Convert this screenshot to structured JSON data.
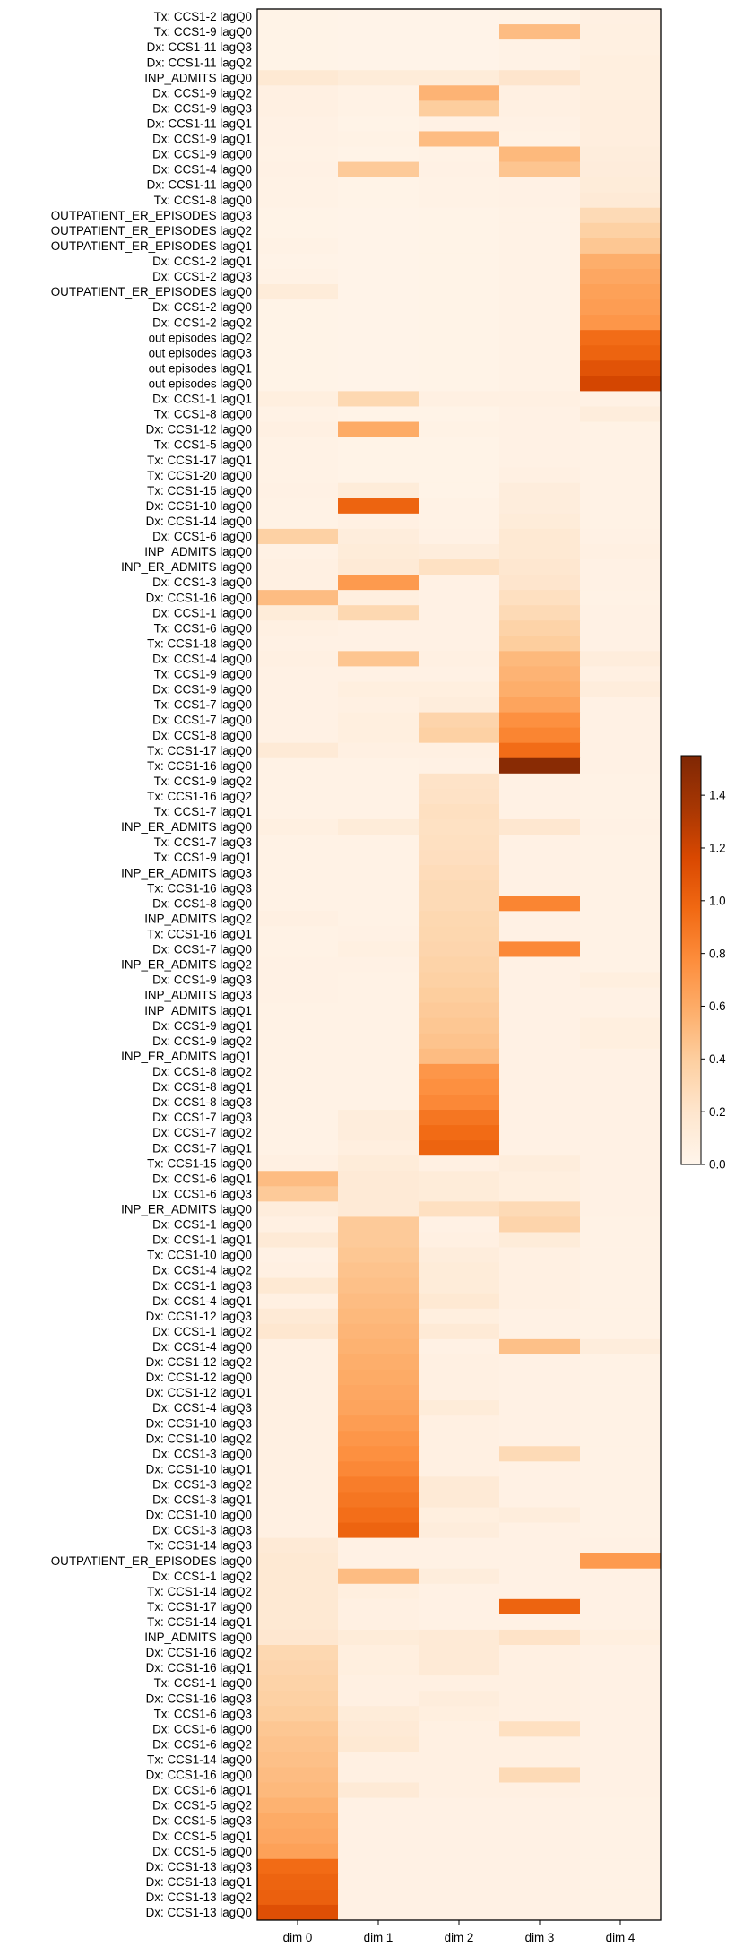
{
  "chart_data": {
    "type": "heatmap",
    "title": "",
    "xlabel": "",
    "ylabel": "",
    "columns": [
      "dim 0",
      "dim 1",
      "dim 2",
      "dim 3",
      "dim 4"
    ],
    "colorbar": {
      "min": 0.0,
      "max": 1.55,
      "ticks": [
        "0.0",
        "0.2",
        "0.4",
        "0.6",
        "0.8",
        "1.0",
        "1.2",
        "1.4"
      ],
      "tick_values": [
        0.0,
        0.2,
        0.4,
        0.6,
        0.8,
        1.0,
        1.2,
        1.4
      ],
      "colormap": "Oranges",
      "stops": [
        "#fff5eb",
        "#fee6ce",
        "#fdd0a2",
        "#fdae6b",
        "#fd8d3c",
        "#f16913",
        "#d94801",
        "#a63603",
        "#7f2704"
      ]
    },
    "rows": [
      "Tx: CCS1-2 lagQ0",
      "Tx: CCS1-9 lagQ0",
      "Dx: CCS1-11 lagQ3",
      "Dx: CCS1-11 lagQ2",
      "INP_ADMITS lagQ0",
      "Dx: CCS1-9 lagQ2",
      "Dx: CCS1-9 lagQ3",
      "Dx: CCS1-11 lagQ1",
      "Dx: CCS1-9 lagQ1",
      "Dx: CCS1-9 lagQ0",
      "Dx: CCS1-4 lagQ0",
      "Dx: CCS1-11 lagQ0",
      "Tx: CCS1-8 lagQ0",
      "OUTPATIENT_ER_EPISODES lagQ3",
      "OUTPATIENT_ER_EPISODES lagQ2",
      "OUTPATIENT_ER_EPISODES lagQ1",
      "Dx: CCS1-2 lagQ1",
      "Dx: CCS1-2 lagQ3",
      "OUTPATIENT_ER_EPISODES lagQ0",
      "Dx: CCS1-2 lagQ0",
      "Dx: CCS1-2 lagQ2",
      "out episodes lagQ2",
      "out episodes lagQ3",
      "out episodes lagQ1",
      "out episodes lagQ0",
      "Dx: CCS1-1 lagQ1",
      "Tx: CCS1-8 lagQ0",
      "Dx: CCS1-12 lagQ0",
      "Tx: CCS1-5 lagQ0",
      "Tx: CCS1-17 lagQ1",
      "Tx: CCS1-20 lagQ0",
      "Tx: CCS1-15 lagQ0",
      "Dx: CCS1-10 lagQ0",
      "Dx: CCS1-14 lagQ0",
      "Dx: CCS1-6 lagQ0",
      "INP_ADMITS lagQ0",
      "INP_ER_ADMITS lagQ0",
      "Dx: CCS1-3 lagQ0",
      "Dx: CCS1-16 lagQ0",
      "Dx: CCS1-1 lagQ0",
      "Tx: CCS1-6 lagQ0",
      "Tx: CCS1-18 lagQ0",
      "Dx: CCS1-4 lagQ0",
      "Tx: CCS1-9 lagQ0",
      "Dx: CCS1-9 lagQ0",
      "Tx: CCS1-7 lagQ0",
      "Dx: CCS1-7 lagQ0",
      "Dx: CCS1-8 lagQ0",
      "Tx: CCS1-17 lagQ0",
      "Tx: CCS1-16 lagQ0",
      "Tx: CCS1-9 lagQ2",
      "Tx: CCS1-16 lagQ2",
      "Tx: CCS1-7 lagQ1",
      "INP_ER_ADMITS lagQ0",
      "Tx: CCS1-7 lagQ3",
      "Tx: CCS1-9 lagQ1",
      "INP_ER_ADMITS lagQ3",
      "Tx: CCS1-16 lagQ3",
      "Dx: CCS1-8 lagQ0",
      "INP_ADMITS lagQ2",
      "Tx: CCS1-16 lagQ1",
      "Dx: CCS1-7 lagQ0",
      "INP_ER_ADMITS lagQ2",
      "Dx: CCS1-9 lagQ3",
      "INP_ADMITS lagQ3",
      "INP_ADMITS lagQ1",
      "Dx: CCS1-9 lagQ1",
      "Dx: CCS1-9 lagQ2",
      "INP_ER_ADMITS lagQ1",
      "Dx: CCS1-8 lagQ2",
      "Dx: CCS1-8 lagQ1",
      "Dx: CCS1-8 lagQ3",
      "Dx: CCS1-7 lagQ3",
      "Dx: CCS1-7 lagQ2",
      "Dx: CCS1-7 lagQ1",
      "Tx: CCS1-15 lagQ0",
      "Dx: CCS1-6 lagQ1",
      "Dx: CCS1-6 lagQ3",
      "INP_ER_ADMITS lagQ0",
      "Dx: CCS1-1 lagQ0",
      "Dx: CCS1-1 lagQ1",
      "Tx: CCS1-10 lagQ0",
      "Dx: CCS1-4 lagQ2",
      "Dx: CCS1-1 lagQ3",
      "Dx: CCS1-4 lagQ1",
      "Dx: CCS1-12 lagQ3",
      "Dx: CCS1-1 lagQ2",
      "Dx: CCS1-4 lagQ0",
      "Dx: CCS1-12 lagQ2",
      "Dx: CCS1-12 lagQ0",
      "Dx: CCS1-12 lagQ1",
      "Dx: CCS1-4 lagQ3",
      "Dx: CCS1-10 lagQ3",
      "Dx: CCS1-10 lagQ2",
      "Dx: CCS1-3 lagQ0",
      "Dx: CCS1-10 lagQ1",
      "Dx: CCS1-3 lagQ2",
      "Dx: CCS1-3 lagQ1",
      "Dx: CCS1-10 lagQ0",
      "Dx: CCS1-3 lagQ3",
      "Tx: CCS1-14 lagQ3",
      "OUTPATIENT_ER_EPISODES lagQ0",
      "Dx: CCS1-1 lagQ2",
      "Tx: CCS1-14 lagQ2",
      "Tx: CCS1-17 lagQ0",
      "Tx: CCS1-14 lagQ1",
      "INP_ADMITS lagQ0",
      "Dx: CCS1-16 lagQ2",
      "Dx: CCS1-16 lagQ1",
      "Tx: CCS1-1 lagQ0",
      "Dx: CCS1-16 lagQ3",
      "Tx: CCS1-6 lagQ3",
      "Dx: CCS1-6 lagQ0",
      "Dx: CCS1-6 lagQ2",
      "Tx: CCS1-14 lagQ0",
      "Dx: CCS1-16 lagQ0",
      "Dx: CCS1-6 lagQ1",
      "Dx: CCS1-5 lagQ2",
      "Dx: CCS1-5 lagQ3",
      "Dx: CCS1-5 lagQ1",
      "Dx: CCS1-5 lagQ0",
      "Dx: CCS1-13 lagQ3",
      "Dx: CCS1-13 lagQ1",
      "Dx: CCS1-13 lagQ2",
      "Dx: CCS1-13 lagQ0"
    ],
    "values": [
      [
        0.03,
        0.02,
        0.02,
        0.03,
        0.06
      ],
      [
        0.03,
        0.02,
        0.02,
        0.5,
        0.07
      ],
      [
        0.03,
        0.02,
        0.02,
        0.04,
        0.07
      ],
      [
        0.03,
        0.02,
        0.02,
        0.04,
        0.08
      ],
      [
        0.16,
        0.12,
        0.12,
        0.2,
        0.08
      ],
      [
        0.06,
        0.04,
        0.55,
        0.06,
        0.08
      ],
      [
        0.06,
        0.04,
        0.4,
        0.06,
        0.09
      ],
      [
        0.05,
        0.03,
        0.05,
        0.05,
        0.09
      ],
      [
        0.05,
        0.04,
        0.5,
        0.04,
        0.09
      ],
      [
        0.04,
        0.03,
        0.04,
        0.52,
        0.1
      ],
      [
        0.05,
        0.42,
        0.05,
        0.45,
        0.11
      ],
      [
        0.04,
        0.03,
        0.04,
        0.05,
        0.12
      ],
      [
        0.04,
        0.03,
        0.04,
        0.05,
        0.14
      ],
      [
        0.03,
        0.02,
        0.03,
        0.04,
        0.3
      ],
      [
        0.03,
        0.02,
        0.03,
        0.04,
        0.38
      ],
      [
        0.04,
        0.02,
        0.03,
        0.04,
        0.44
      ],
      [
        0.03,
        0.02,
        0.03,
        0.04,
        0.58
      ],
      [
        0.04,
        0.02,
        0.03,
        0.04,
        0.62
      ],
      [
        0.12,
        0.02,
        0.03,
        0.04,
        0.66
      ],
      [
        0.03,
        0.02,
        0.03,
        0.04,
        0.68
      ],
      [
        0.03,
        0.02,
        0.03,
        0.04,
        0.72
      ],
      [
        0.03,
        0.02,
        0.03,
        0.04,
        0.95
      ],
      [
        0.03,
        0.02,
        0.03,
        0.04,
        1.0
      ],
      [
        0.03,
        0.02,
        0.03,
        0.04,
        1.1
      ],
      [
        0.03,
        0.02,
        0.03,
        0.04,
        1.18
      ],
      [
        0.08,
        0.32,
        0.06,
        0.06,
        0.05
      ],
      [
        0.04,
        0.03,
        0.03,
        0.05,
        0.1
      ],
      [
        0.06,
        0.6,
        0.04,
        0.05,
        0.04
      ],
      [
        0.04,
        0.03,
        0.03,
        0.05,
        0.04
      ],
      [
        0.04,
        0.03,
        0.03,
        0.05,
        0.04
      ],
      [
        0.04,
        0.03,
        0.03,
        0.06,
        0.04
      ],
      [
        0.05,
        0.12,
        0.03,
        0.1,
        0.04
      ],
      [
        0.04,
        1.0,
        0.04,
        0.1,
        0.04
      ],
      [
        0.04,
        0.06,
        0.04,
        0.12,
        0.04
      ],
      [
        0.38,
        0.1,
        0.05,
        0.16,
        0.05
      ],
      [
        0.05,
        0.12,
        0.1,
        0.16,
        0.06
      ],
      [
        0.06,
        0.14,
        0.24,
        0.18,
        0.05
      ],
      [
        0.06,
        0.7,
        0.05,
        0.2,
        0.05
      ],
      [
        0.5,
        0.08,
        0.05,
        0.25,
        0.04
      ],
      [
        0.12,
        0.32,
        0.05,
        0.3,
        0.05
      ],
      [
        0.06,
        0.05,
        0.05,
        0.36,
        0.05
      ],
      [
        0.05,
        0.05,
        0.05,
        0.4,
        0.05
      ],
      [
        0.06,
        0.45,
        0.06,
        0.52,
        0.1
      ],
      [
        0.05,
        0.05,
        0.05,
        0.55,
        0.06
      ],
      [
        0.05,
        0.08,
        0.08,
        0.58,
        0.1
      ],
      [
        0.05,
        0.06,
        0.1,
        0.64,
        0.05
      ],
      [
        0.05,
        0.08,
        0.35,
        0.76,
        0.05
      ],
      [
        0.05,
        0.08,
        0.38,
        0.82,
        0.05
      ],
      [
        0.14,
        0.06,
        0.06,
        0.95,
        0.05
      ],
      [
        0.04,
        0.04,
        0.05,
        1.5,
        0.05
      ],
      [
        0.04,
        0.04,
        0.22,
        0.05,
        0.04
      ],
      [
        0.04,
        0.04,
        0.23,
        0.05,
        0.04
      ],
      [
        0.04,
        0.04,
        0.25,
        0.05,
        0.04
      ],
      [
        0.07,
        0.12,
        0.24,
        0.18,
        0.05
      ],
      [
        0.04,
        0.04,
        0.25,
        0.05,
        0.04
      ],
      [
        0.04,
        0.04,
        0.26,
        0.05,
        0.04
      ],
      [
        0.04,
        0.04,
        0.28,
        0.05,
        0.04
      ],
      [
        0.04,
        0.04,
        0.3,
        0.05,
        0.04
      ],
      [
        0.04,
        0.04,
        0.3,
        0.82,
        0.04
      ],
      [
        0.06,
        0.04,
        0.32,
        0.05,
        0.04
      ],
      [
        0.04,
        0.05,
        0.33,
        0.05,
        0.04
      ],
      [
        0.04,
        0.07,
        0.34,
        0.8,
        0.04
      ],
      [
        0.05,
        0.05,
        0.36,
        0.05,
        0.04
      ],
      [
        0.05,
        0.04,
        0.38,
        0.05,
        0.08
      ],
      [
        0.05,
        0.04,
        0.4,
        0.05,
        0.05
      ],
      [
        0.04,
        0.04,
        0.42,
        0.05,
        0.05
      ],
      [
        0.04,
        0.04,
        0.44,
        0.05,
        0.08
      ],
      [
        0.04,
        0.04,
        0.46,
        0.05,
        0.08
      ],
      [
        0.04,
        0.04,
        0.5,
        0.05,
        0.05
      ],
      [
        0.04,
        0.04,
        0.72,
        0.05,
        0.05
      ],
      [
        0.04,
        0.04,
        0.76,
        0.05,
        0.05
      ],
      [
        0.04,
        0.04,
        0.8,
        0.05,
        0.05
      ],
      [
        0.04,
        0.1,
        0.9,
        0.05,
        0.05
      ],
      [
        0.04,
        0.1,
        0.96,
        0.05,
        0.05
      ],
      [
        0.04,
        0.08,
        1.0,
        0.05,
        0.05
      ],
      [
        0.06,
        0.12,
        0.06,
        0.1,
        0.05
      ],
      [
        0.5,
        0.14,
        0.12,
        0.08,
        0.05
      ],
      [
        0.42,
        0.14,
        0.12,
        0.08,
        0.05
      ],
      [
        0.1,
        0.14,
        0.25,
        0.3,
        0.05
      ],
      [
        0.06,
        0.42,
        0.05,
        0.35,
        0.04
      ],
      [
        0.14,
        0.42,
        0.06,
        0.12,
        0.04
      ],
      [
        0.05,
        0.44,
        0.1,
        0.06,
        0.04
      ],
      [
        0.06,
        0.46,
        0.12,
        0.06,
        0.04
      ],
      [
        0.16,
        0.48,
        0.12,
        0.06,
        0.04
      ],
      [
        0.06,
        0.5,
        0.16,
        0.06,
        0.04
      ],
      [
        0.14,
        0.52,
        0.08,
        0.05,
        0.04
      ],
      [
        0.18,
        0.54,
        0.14,
        0.05,
        0.04
      ],
      [
        0.06,
        0.56,
        0.05,
        0.48,
        0.1
      ],
      [
        0.06,
        0.58,
        0.06,
        0.05,
        0.04
      ],
      [
        0.06,
        0.6,
        0.06,
        0.05,
        0.04
      ],
      [
        0.06,
        0.62,
        0.06,
        0.05,
        0.04
      ],
      [
        0.06,
        0.64,
        0.12,
        0.05,
        0.04
      ],
      [
        0.06,
        0.68,
        0.06,
        0.05,
        0.04
      ],
      [
        0.06,
        0.72,
        0.06,
        0.05,
        0.04
      ],
      [
        0.06,
        0.76,
        0.06,
        0.3,
        0.04
      ],
      [
        0.06,
        0.8,
        0.06,
        0.05,
        0.04
      ],
      [
        0.06,
        0.86,
        0.14,
        0.05,
        0.04
      ],
      [
        0.06,
        0.9,
        0.14,
        0.05,
        0.04
      ],
      [
        0.06,
        0.94,
        0.08,
        0.1,
        0.04
      ],
      [
        0.06,
        1.0,
        0.1,
        0.05,
        0.04
      ],
      [
        0.14,
        0.05,
        0.05,
        0.05,
        0.05
      ],
      [
        0.16,
        0.05,
        0.05,
        0.05,
        0.7
      ],
      [
        0.16,
        0.5,
        0.1,
        0.05,
        0.05
      ],
      [
        0.16,
        0.08,
        0.05,
        0.05,
        0.05
      ],
      [
        0.16,
        0.06,
        0.05,
        1.0,
        0.05
      ],
      [
        0.16,
        0.06,
        0.05,
        0.05,
        0.05
      ],
      [
        0.18,
        0.12,
        0.14,
        0.22,
        0.08
      ],
      [
        0.32,
        0.08,
        0.14,
        0.06,
        0.05
      ],
      [
        0.34,
        0.08,
        0.14,
        0.06,
        0.05
      ],
      [
        0.36,
        0.06,
        0.06,
        0.06,
        0.05
      ],
      [
        0.38,
        0.06,
        0.1,
        0.06,
        0.05
      ],
      [
        0.4,
        0.12,
        0.08,
        0.06,
        0.05
      ],
      [
        0.44,
        0.14,
        0.06,
        0.25,
        0.05
      ],
      [
        0.46,
        0.16,
        0.06,
        0.06,
        0.05
      ],
      [
        0.48,
        0.06,
        0.06,
        0.06,
        0.05
      ],
      [
        0.5,
        0.06,
        0.06,
        0.3,
        0.05
      ],
      [
        0.52,
        0.14,
        0.06,
        0.06,
        0.05
      ],
      [
        0.56,
        0.05,
        0.05,
        0.05,
        0.04
      ],
      [
        0.6,
        0.05,
        0.05,
        0.05,
        0.04
      ],
      [
        0.62,
        0.05,
        0.05,
        0.05,
        0.04
      ],
      [
        0.66,
        0.05,
        0.05,
        0.05,
        0.04
      ],
      [
        0.96,
        0.05,
        0.05,
        0.05,
        0.04
      ],
      [
        1.0,
        0.05,
        0.05,
        0.05,
        0.04
      ],
      [
        1.02,
        0.05,
        0.05,
        0.05,
        0.04
      ],
      [
        1.12,
        0.05,
        0.05,
        0.05,
        0.04
      ]
    ]
  }
}
